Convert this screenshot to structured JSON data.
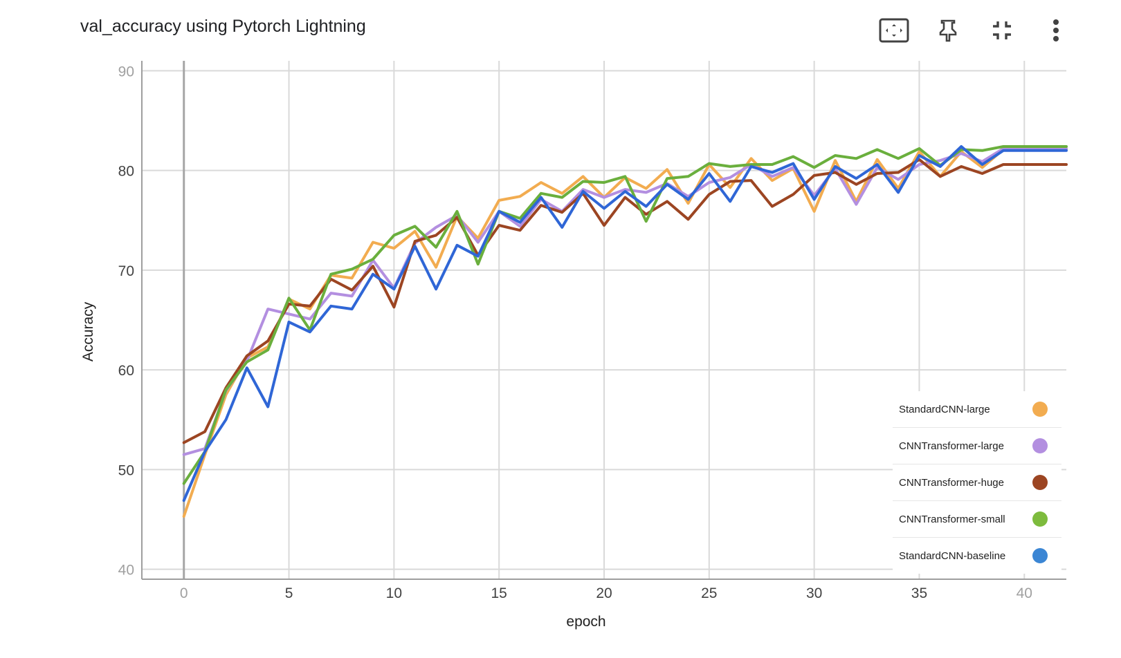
{
  "header": {
    "title": "val_accuracy using Pytorch Lightning"
  },
  "toolbar": {
    "icons": [
      "fit-screen-icon",
      "pin-icon",
      "collapse-icon",
      "more-vert-icon"
    ]
  },
  "chart_data": {
    "type": "line",
    "title": "val_accuracy using Pytorch Lightning",
    "xlabel": "epoch",
    "ylabel": "Accuracy",
    "xlim": [
      -2,
      42
    ],
    "ylim": [
      39,
      91
    ],
    "xticks": [
      0,
      5,
      10,
      15,
      20,
      25,
      30,
      35,
      40
    ],
    "yticks": [
      40,
      50,
      60,
      70,
      80,
      90
    ],
    "grid": true,
    "legend_position": "bottom-right",
    "x": [
      0,
      1,
      2,
      3,
      4,
      5,
      6,
      7,
      8,
      9,
      10,
      11,
      12,
      13,
      14,
      15,
      16,
      17,
      18,
      19,
      20,
      21,
      22,
      23,
      24,
      25,
      26,
      27,
      28,
      29,
      30,
      31,
      32,
      33,
      34,
      35,
      36,
      37,
      38,
      39,
      40,
      41,
      42
    ],
    "series": [
      {
        "name": "StandardCNN-large",
        "color": "#f2ac50",
        "values": [
          45.3,
          51.5,
          57.5,
          61.2,
          62.3,
          67.1,
          66.1,
          69.5,
          69.2,
          72.8,
          72.2,
          73.9,
          70.3,
          75.4,
          73.2,
          77.0,
          77.4,
          78.8,
          77.7,
          79.4,
          77.3,
          79.3,
          78.2,
          80.1,
          76.7,
          80.6,
          78.3,
          81.2,
          79.0,
          80.2,
          75.9,
          81.0,
          76.9,
          81.1,
          78.2,
          81.9,
          79.4,
          81.9,
          80.3,
          82.1,
          82.1,
          82.1,
          82.1
        ]
      },
      {
        "name": "CNNTransformer-large",
        "color": "#b38fe0",
        "values": [
          51.5,
          52.1,
          57.9,
          60.9,
          66.1,
          65.6,
          65.1,
          67.7,
          67.4,
          71.0,
          68.2,
          72.7,
          74.3,
          75.5,
          72.8,
          75.9,
          74.4,
          77.1,
          75.9,
          78.1,
          77.3,
          78.1,
          77.8,
          78.7,
          77.4,
          78.8,
          79.3,
          80.6,
          79.4,
          80.3,
          77.5,
          80.2,
          76.6,
          80.3,
          79.1,
          80.6,
          81.0,
          81.7,
          80.9,
          82.2,
          82.2,
          82.2,
          82.2
        ]
      },
      {
        "name": "CNNTransformer-huge",
        "color": "#9c4522",
        "values": [
          52.7,
          53.8,
          58.2,
          61.4,
          62.9,
          66.6,
          66.4,
          69.1,
          68.0,
          70.4,
          66.3,
          72.9,
          73.5,
          75.3,
          71.5,
          74.5,
          74.0,
          76.5,
          75.8,
          77.7,
          74.5,
          77.3,
          75.6,
          76.9,
          75.1,
          77.6,
          78.9,
          79.0,
          76.4,
          77.6,
          79.5,
          79.8,
          78.6,
          79.7,
          79.8,
          81.1,
          79.4,
          80.4,
          79.7,
          80.6,
          80.6,
          80.6,
          80.6
        ]
      },
      {
        "name": "CNNTransformer-small",
        "color": "#6aaf3d",
        "values": [
          48.6,
          51.8,
          58.0,
          60.8,
          62.0,
          67.2,
          64.0,
          69.6,
          70.1,
          71.1,
          73.5,
          74.4,
          72.3,
          75.9,
          70.6,
          75.9,
          75.2,
          77.7,
          77.3,
          78.9,
          78.8,
          79.4,
          74.9,
          79.2,
          79.4,
          80.7,
          80.4,
          80.6,
          80.6,
          81.4,
          80.3,
          81.5,
          81.2,
          82.1,
          81.2,
          82.2,
          80.5,
          82.1,
          82.0,
          82.4,
          82.4,
          82.4,
          82.4
        ]
      },
      {
        "name": "StandardCNN-baseline",
        "color": "#2f66d6",
        "values": [
          46.9,
          51.8,
          55.0,
          60.2,
          56.3,
          64.8,
          63.8,
          66.4,
          66.1,
          69.6,
          68.1,
          72.4,
          68.1,
          72.5,
          71.4,
          75.9,
          74.8,
          77.3,
          74.3,
          77.9,
          76.2,
          77.9,
          76.4,
          78.6,
          77.1,
          79.7,
          76.9,
          80.4,
          79.8,
          80.7,
          77.1,
          80.4,
          79.2,
          80.6,
          77.8,
          81.5,
          80.4,
          82.4,
          80.6,
          82.0,
          82.0,
          82.0,
          82.0
        ]
      }
    ]
  },
  "legend": {
    "items": [
      {
        "label": "StandardCNN-large",
        "color": "#f2ac50"
      },
      {
        "label": "CNNTransformer-large",
        "color": "#b38fe0"
      },
      {
        "label": "CNNTransformer-huge",
        "color": "#9c4522"
      },
      {
        "label": "CNNTransformer-small",
        "color": "#7dbb3d"
      },
      {
        "label": "StandardCNN-baseline",
        "color": "#3b86d4"
      }
    ]
  }
}
